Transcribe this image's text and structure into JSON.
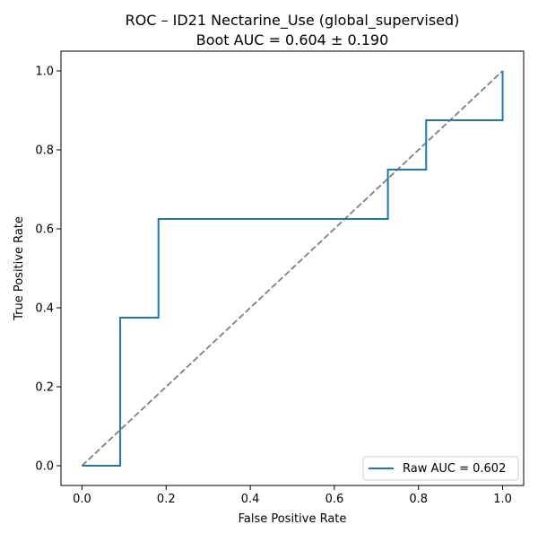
{
  "chart_data": {
    "type": "line",
    "title": "ROC – ID21 Nectarine_Use (global_supervised)",
    "subtitle": "Boot AUC = 0.604 ± 0.190",
    "xlabel": "False Positive Rate",
    "ylabel": "True Positive Rate",
    "xlim": [
      -0.05,
      1.05
    ],
    "ylim": [
      -0.05,
      1.05
    ],
    "xticks": [
      0.0,
      0.2,
      0.4,
      0.6,
      0.8,
      1.0
    ],
    "xtick_labels": [
      "0.0",
      "0.2",
      "0.4",
      "0.6",
      "0.8",
      "1.0"
    ],
    "yticks": [
      0.0,
      0.2,
      0.4,
      0.6,
      0.8,
      1.0
    ],
    "ytick_labels": [
      "0.0",
      "0.2",
      "0.4",
      "0.6",
      "0.8",
      "1.0"
    ],
    "grid": false,
    "legend_position": "lower-right",
    "series": [
      {
        "name": "Raw AUC = 0.602",
        "style": "step",
        "color": "#1f77b4",
        "x": [
          0.0,
          0.0909,
          0.0909,
          0.1818,
          0.1818,
          0.7273,
          0.7273,
          0.8182,
          0.8182,
          1.0,
          1.0
        ],
        "y": [
          0.0,
          0.0,
          0.375,
          0.375,
          0.625,
          0.625,
          0.75,
          0.75,
          0.875,
          0.875,
          1.0
        ]
      },
      {
        "style": "dashed",
        "color": "#808080",
        "x": [
          0.0,
          1.0
        ],
        "y": [
          0.0,
          1.0
        ]
      }
    ]
  }
}
